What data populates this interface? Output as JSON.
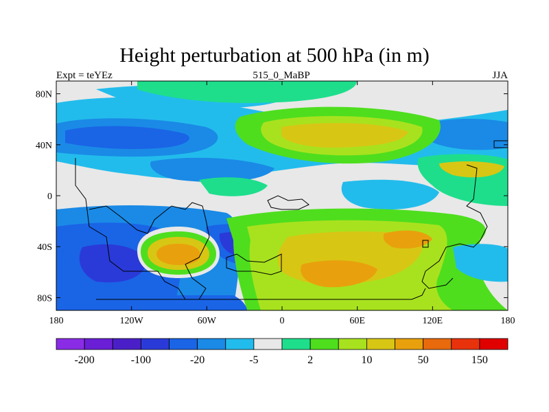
{
  "chart_data": {
    "type": "heatmap",
    "title": "Height perturbation at 500 hPa (in m)",
    "subtitle_left": "Expt = teYEz",
    "subtitle_center": "515_0_MaBP",
    "subtitle_right": "JJA",
    "xlim": [
      -180,
      180
    ],
    "ylim": [
      -90,
      90
    ],
    "x_ticks": [
      {
        "value": -180,
        "label": "180"
      },
      {
        "value": -120,
        "label": "120W"
      },
      {
        "value": -60,
        "label": "60W"
      },
      {
        "value": 0,
        "label": "0"
      },
      {
        "value": 60,
        "label": "60E"
      },
      {
        "value": 120,
        "label": "120E"
      },
      {
        "value": 180,
        "label": "180"
      }
    ],
    "y_ticks": [
      {
        "value": 80,
        "label": "80N"
      },
      {
        "value": 40,
        "label": "40N"
      },
      {
        "value": 0,
        "label": "0"
      },
      {
        "value": -40,
        "label": "40S"
      },
      {
        "value": -80,
        "label": "80S"
      }
    ],
    "colorbar": {
      "colors": [
        "#8a2ce6",
        "#6a1fd6",
        "#4a1fc8",
        "#2a3ad8",
        "#1a64e6",
        "#1a8ae6",
        "#22bcec",
        "#e8e8e8",
        "#1ede8c",
        "#4ede1e",
        "#a8e21e",
        "#d8c614",
        "#e8a10c",
        "#e86a0c",
        "#e8320c",
        "#e00000"
      ],
      "labels": [
        {
          "text": "-200",
          "boundary": 1
        },
        {
          "text": "-100",
          "boundary": 3
        },
        {
          "text": "-20",
          "boundary": 5
        },
        {
          "text": "-5",
          "boundary": 7
        },
        {
          "text": "2",
          "boundary": 9
        },
        {
          "text": "10",
          "boundary": 11
        },
        {
          "text": "50",
          "boundary": 13
        },
        {
          "text": "150",
          "boundary": 15
        }
      ]
    },
    "field_blobs": [
      {
        "name": "base-north",
        "level": 6
      },
      {
        "name": "north-pacific-low",
        "level": 4
      },
      {
        "name": "north-atlantic-low",
        "level": 5
      },
      {
        "name": "eurasia-high",
        "level": 11
      },
      {
        "name": "southern-low",
        "level": 4
      },
      {
        "name": "south-atlantic-high",
        "level": 11
      },
      {
        "name": "indian-ocean-high",
        "level": 12
      },
      {
        "name": "south-pacific-high",
        "level": 12
      }
    ]
  }
}
